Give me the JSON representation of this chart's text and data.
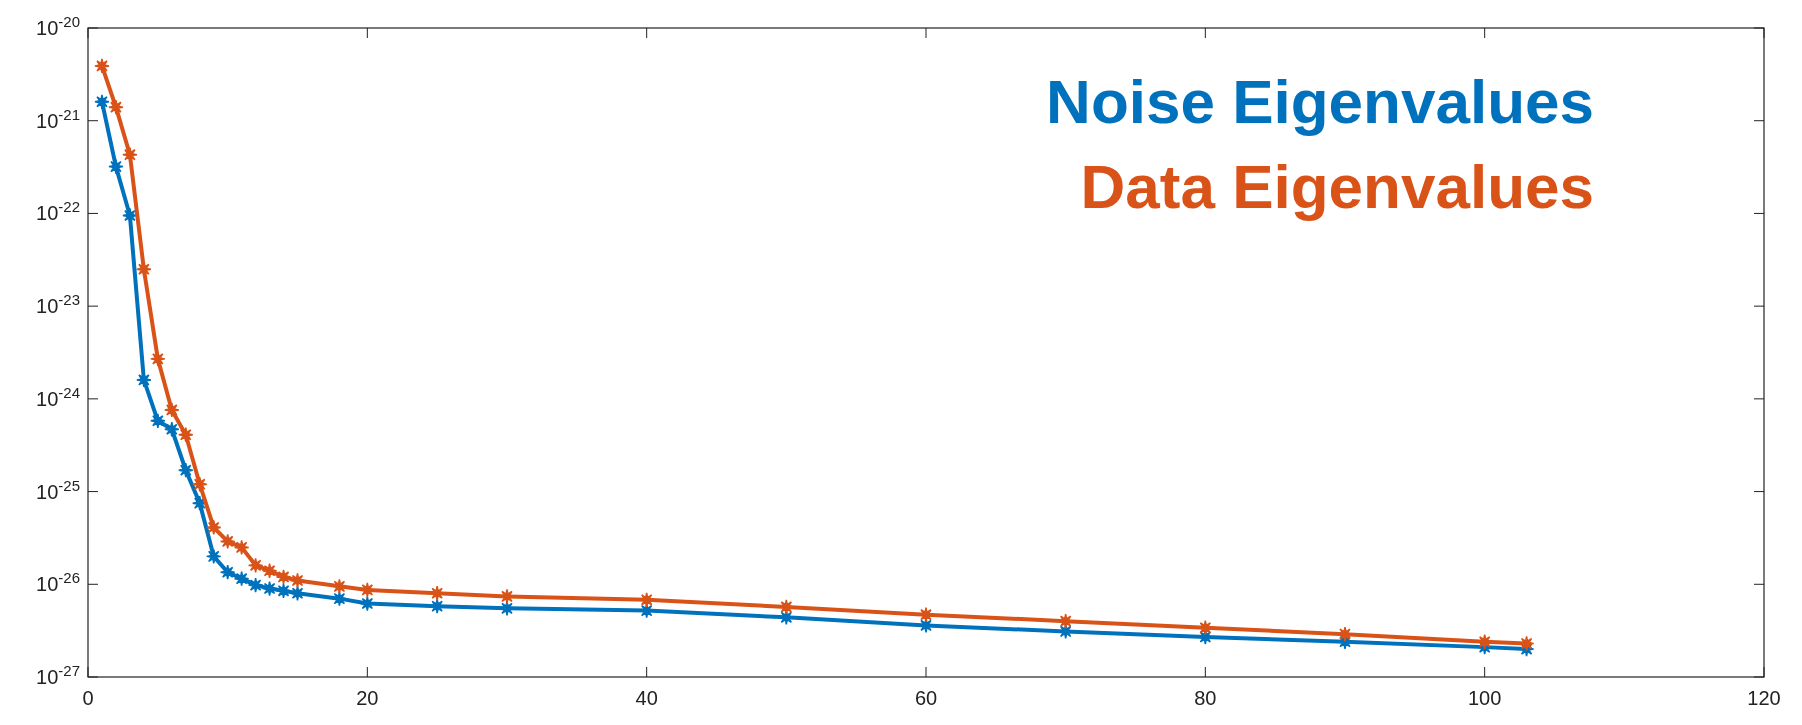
{
  "chart_data": {
    "type": "line",
    "log": "y",
    "marker": "star",
    "legend": "top right",
    "grid": false,
    "xlim": [
      0,
      120
    ],
    "xticks": [
      0,
      20,
      40,
      60,
      80,
      100,
      120
    ],
    "ylim": [
      1e-27,
      1e-20
    ],
    "yticks": [
      {
        "value": 1e-27,
        "label": "10$^{-27}$"
      },
      {
        "value": 1e-26,
        "label": "10$^{-26}$"
      },
      {
        "value": 1e-25,
        "label": "10$^{-25}$"
      },
      {
        "value": 1e-24,
        "label": "10$^{-24}$"
      },
      {
        "value": 1e-23,
        "label": "10$^{-23}$"
      },
      {
        "value": 1e-22,
        "label": "10$^{-22}$"
      },
      {
        "value": 1e-21,
        "label": "10$^{-21}$"
      },
      {
        "value": 1e-20,
        "label": "10$^{-20}$"
      }
    ],
    "series": [
      {
        "name": "Noise Eigenvalues",
        "color": "#0072bd",
        "x": [
          1,
          2,
          3,
          4,
          5,
          6,
          7,
          8,
          9,
          10,
          11,
          12,
          13,
          14,
          15,
          18,
          20,
          25,
          30,
          40,
          50,
          60,
          70,
          80,
          90,
          100,
          103
        ],
        "values": [
          1.6e-21,
          3.2e-22,
          9.5e-23,
          1.6e-24,
          5.8e-25,
          4.7e-25,
          1.7e-25,
          7.5e-26,
          2e-26,
          1.35e-26,
          1.15e-26,
          9.8e-27,
          9e-27,
          8.5e-27,
          8e-27,
          7e-27,
          6.2e-27,
          5.8e-27,
          5.5e-27,
          5.2e-27,
          4.4e-27,
          3.6e-27,
          3.1e-27,
          2.7e-27,
          2.4e-27,
          2.1e-27,
          2e-27
        ]
      },
      {
        "name": "Data Eigenvalues",
        "color": "#d95319",
        "x": [
          1,
          2,
          3,
          4,
          5,
          6,
          7,
          8,
          9,
          10,
          11,
          12,
          13,
          14,
          15,
          18,
          20,
          25,
          30,
          40,
          50,
          60,
          70,
          80,
          90,
          100,
          103
        ],
        "values": [
          3.9e-21,
          1.4e-21,
          4.3e-22,
          2.5e-23,
          2.7e-24,
          7.6e-25,
          4.1e-25,
          1.2e-25,
          4.1e-26,
          2.9e-26,
          2.5e-26,
          1.6e-26,
          1.4e-26,
          1.2e-26,
          1.1e-26,
          9.5e-27,
          8.7e-27,
          8e-27,
          7.4e-27,
          6.8e-27,
          5.7e-27,
          4.7e-27,
          4e-27,
          3.4e-27,
          2.9e-27,
          2.4e-27,
          2.3e-27
        ]
      }
    ]
  }
}
